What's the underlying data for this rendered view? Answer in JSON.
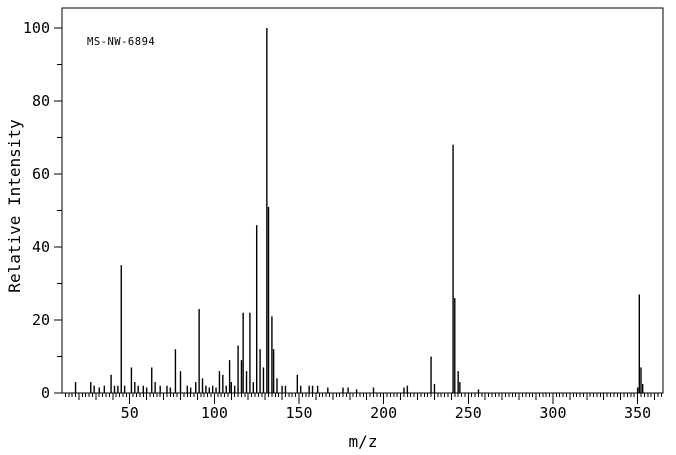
{
  "annotation": "MS-NW-6894",
  "colors": {
    "background": "#ffffff",
    "line": "#000000",
    "text": "#000000"
  },
  "chart_data": {
    "type": "bar",
    "subtype": "mass-spectrum-stick-plot",
    "title": "",
    "xlabel": "m/z",
    "ylabel": "Relative Intensity",
    "xlim": [
      10,
      365
    ],
    "ylim": [
      0,
      105
    ],
    "grid": false,
    "legend": null,
    "x_major_ticks": [
      50,
      100,
      150,
      200,
      250,
      300,
      350
    ],
    "x_medium_tick_step": 10,
    "x_minor_tick_step": 2,
    "y_major_ticks": [
      0,
      20,
      40,
      60,
      80,
      100
    ],
    "y_minor_tick_step": 10,
    "peaks_format": [
      "mz",
      "relative_intensity"
    ],
    "peaks": [
      [
        18,
        3
      ],
      [
        27,
        3
      ],
      [
        29,
        2
      ],
      [
        32,
        1.5
      ],
      [
        35,
        2
      ],
      [
        39,
        5
      ],
      [
        41,
        2
      ],
      [
        43,
        2
      ],
      [
        45,
        35
      ],
      [
        47,
        2
      ],
      [
        51,
        7
      ],
      [
        53,
        3
      ],
      [
        55,
        2
      ],
      [
        58,
        2
      ],
      [
        60,
        1.5
      ],
      [
        63,
        7
      ],
      [
        65,
        3
      ],
      [
        68,
        2
      ],
      [
        72,
        2
      ],
      [
        74,
        1.5
      ],
      [
        77,
        12
      ],
      [
        80,
        6
      ],
      [
        84,
        2
      ],
      [
        86,
        1.5
      ],
      [
        89,
        3
      ],
      [
        91,
        23
      ],
      [
        93,
        4
      ],
      [
        95,
        2
      ],
      [
        97,
        1.5
      ],
      [
        99,
        2
      ],
      [
        101,
        1.5
      ],
      [
        103,
        6
      ],
      [
        105,
        5
      ],
      [
        107,
        2
      ],
      [
        109,
        9
      ],
      [
        110,
        3
      ],
      [
        112,
        2
      ],
      [
        114,
        13
      ],
      [
        116,
        9
      ],
      [
        117,
        22
      ],
      [
        119,
        6
      ],
      [
        121,
        22
      ],
      [
        123,
        3
      ],
      [
        125,
        46
      ],
      [
        127,
        12
      ],
      [
        129,
        7
      ],
      [
        131,
        100
      ],
      [
        132,
        51
      ],
      [
        134,
        21
      ],
      [
        135,
        12
      ],
      [
        137,
        4
      ],
      [
        140,
        2
      ],
      [
        142,
        2
      ],
      [
        149,
        5
      ],
      [
        151,
        2
      ],
      [
        156,
        2
      ],
      [
        158,
        2
      ],
      [
        161,
        2
      ],
      [
        167,
        1.5
      ],
      [
        176,
        1.5
      ],
      [
        179,
        1.5
      ],
      [
        184,
        1
      ],
      [
        194,
        1.5
      ],
      [
        212,
        1.5
      ],
      [
        214,
        2
      ],
      [
        228,
        10
      ],
      [
        230,
        2.5
      ],
      [
        241,
        68
      ],
      [
        242,
        26
      ],
      [
        244,
        6
      ],
      [
        245,
        3
      ],
      [
        256,
        1
      ],
      [
        350,
        1.5
      ],
      [
        351,
        27
      ],
      [
        352,
        7
      ],
      [
        353,
        2.5
      ]
    ],
    "base_peak": {
      "mz": 131,
      "relative_intensity": 100
    }
  }
}
